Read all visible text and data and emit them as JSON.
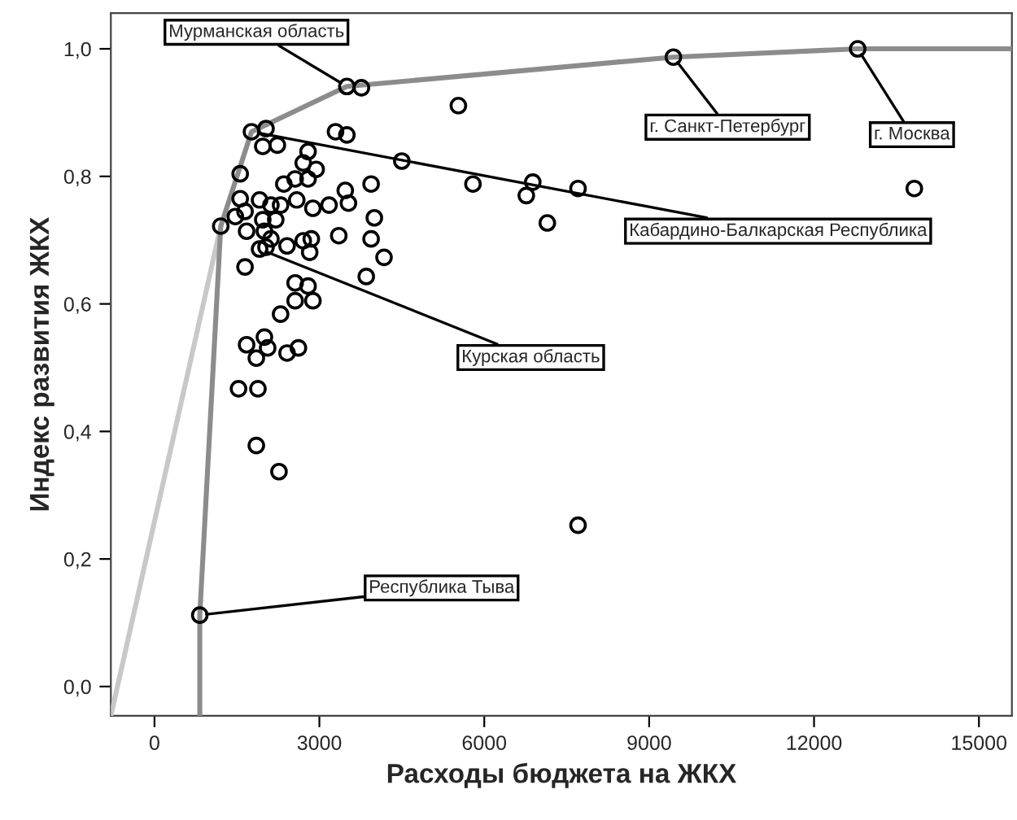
{
  "chart_data": {
    "type": "scatter",
    "xlabel": "Расходы бюджета на ЖКХ",
    "ylabel": "Индекс развития ЖКХ",
    "xlim": [
      -794,
      15600
    ],
    "ylim": [
      -0.046,
      1.056
    ],
    "xticks": [
      0,
      3000,
      6000,
      9000,
      12000,
      15000
    ],
    "yticks": [
      {
        "value": 0.0,
        "label": "0,0"
      },
      {
        "value": 0.2,
        "label": "0,2"
      },
      {
        "value": 0.4,
        "label": "0,4"
      },
      {
        "value": 0.6,
        "label": "0,6"
      },
      {
        "value": 0.8,
        "label": "0,8"
      },
      {
        "value": 1.0,
        "label": "1,0"
      }
    ],
    "grid": false,
    "legend": false,
    "series": [
      {
        "color": "#000000",
        "marker": "circle",
        "x": [
          3500,
          3765,
          5529,
          1765,
          2029,
          3294,
          3500,
          1970,
          2235,
          2794,
          4500,
          1559,
          2706,
          2941,
          2794,
          2559,
          2353,
          5794,
          6882,
          6765,
          7706,
          7147,
          3941,
          3471,
          3529,
          3176,
          2882,
          2588,
          2294,
          2118,
          1912,
          1559,
          1647,
          1471,
          1970,
          2206,
          1676,
          2000,
          2118,
          1912,
          2029,
          2412,
          2706,
          2853,
          2824,
          3353,
          4000,
          3941,
          4176,
          3853,
          1647,
          2559,
          2794,
          2559,
          2882,
          2294,
          1676,
          2000,
          1853,
          2059,
          2412,
          2618,
          1529,
          1882,
          1853,
          2265,
          7706,
          824,
          13824,
          1206,
          9441,
          12794
        ],
        "values": [
          0.941,
          0.939,
          0.911,
          0.87,
          0.875,
          0.87,
          0.865,
          0.847,
          0.849,
          0.839,
          0.824,
          0.804,
          0.821,
          0.811,
          0.796,
          0.796,
          0.788,
          0.788,
          0.791,
          0.77,
          0.781,
          0.727,
          0.788,
          0.778,
          0.758,
          0.755,
          0.75,
          0.763,
          0.755,
          0.755,
          0.763,
          0.765,
          0.745,
          0.737,
          0.732,
          0.732,
          0.714,
          0.714,
          0.702,
          0.686,
          0.689,
          0.691,
          0.699,
          0.702,
          0.681,
          0.707,
          0.735,
          0.702,
          0.673,
          0.643,
          0.658,
          0.633,
          0.628,
          0.605,
          0.605,
          0.584,
          0.536,
          0.548,
          0.515,
          0.531,
          0.523,
          0.531,
          0.467,
          0.467,
          0.378,
          0.337,
          0.253,
          0.112,
          0.781,
          0.722,
          0.987,
          1.0
        ]
      },
      {
        "type": "line",
        "color": "#8c8c8c",
        "marker": "none",
        "line_style": "solid",
        "x": [
          824,
          824,
          1206,
          1765,
          3500,
          9441,
          12794,
          15600
        ],
        "values": [
          -0.046,
          0.112,
          0.722,
          0.87,
          0.941,
          0.987,
          1.0,
          1.0
        ]
      },
      {
        "type": "line",
        "color": "#c8c8c8",
        "marker": "none",
        "line_style": "solid",
        "x": [
          -794,
          1206
        ],
        "values": [
          -0.046,
          0.722
        ]
      }
    ],
    "annotations": [
      {
        "text": "Мурманская область",
        "x": 3500,
        "y": 0.941
      },
      {
        "text": "г. Санкт-Петербург",
        "x": 9441,
        "y": 0.987
      },
      {
        "text": "г. Москва",
        "x": 12794,
        "y": 1.0
      },
      {
        "text": "Кабардино-Балкарская Республика",
        "x": 1765,
        "y": 0.87
      },
      {
        "text": "Курская область",
        "x": 1912,
        "y": 0.686
      },
      {
        "text": "Республика Тыва",
        "x": 824,
        "y": 0.112
      }
    ]
  }
}
